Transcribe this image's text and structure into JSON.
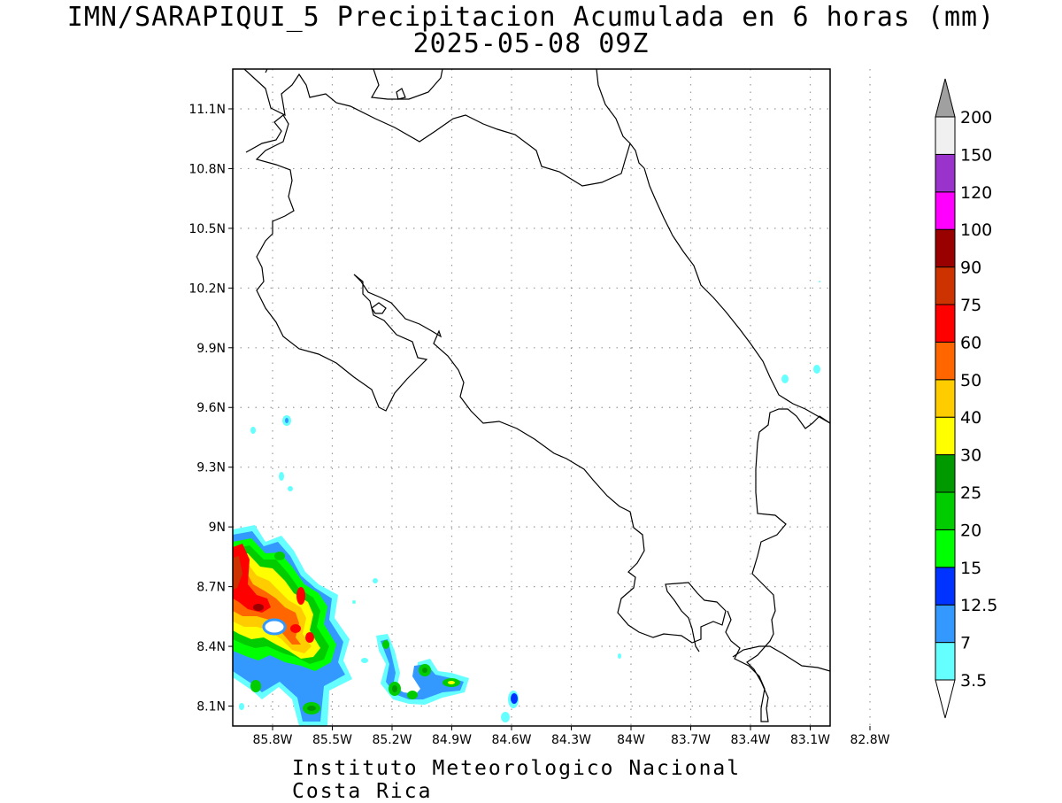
{
  "title": {
    "line1": "IMN/SARAPIQUI_5 Precipitacion Acumulada en 6 horas (mm)",
    "line2": "2025-05-08 09Z"
  },
  "footer": "Instituto Meteorologico Nacional Costa Rica",
  "map": {
    "lon_range": [
      -86.0,
      -83.0
    ],
    "lat_range": [
      8.0,
      11.3
    ],
    "grid": true,
    "lat_ticks": [
      {
        "v": 11.1,
        "label": "11.1N"
      },
      {
        "v": 10.8,
        "label": "10.8N"
      },
      {
        "v": 10.5,
        "label": "10.5N"
      },
      {
        "v": 10.2,
        "label": "10.2N"
      },
      {
        "v": 9.9,
        "label": "9.9N"
      },
      {
        "v": 9.6,
        "label": "9.6N"
      },
      {
        "v": 9.3,
        "label": "9.3N"
      },
      {
        "v": 9.0,
        "label": "9N"
      },
      {
        "v": 8.7,
        "label": "8.7N"
      },
      {
        "v": 8.4,
        "label": "8.4N"
      },
      {
        "v": 8.1,
        "label": "8.1N"
      }
    ],
    "lon_ticks": [
      {
        "v": -85.8,
        "label": "85.8W"
      },
      {
        "v": -85.5,
        "label": "85.5W"
      },
      {
        "v": -85.2,
        "label": "85.2W"
      },
      {
        "v": -84.9,
        "label": "84.9W"
      },
      {
        "v": -84.6,
        "label": "84.6W"
      },
      {
        "v": -84.3,
        "label": "84.3W"
      },
      {
        "v": -84.0,
        "label": "84W"
      },
      {
        "v": -83.7,
        "label": "83.7W"
      },
      {
        "v": -83.4,
        "label": "83.4W"
      },
      {
        "v": -83.1,
        "label": "83.1W"
      },
      {
        "v": -82.8,
        "label": "82.8W"
      }
    ]
  },
  "colorbar": {
    "labels": [
      "3.5",
      "7",
      "12.5",
      "15",
      "20",
      "25",
      "30",
      "40",
      "50",
      "60",
      "75",
      "90",
      "100",
      "120",
      "150",
      "200"
    ],
    "colors": [
      "#66ffff",
      "#3399ff",
      "#0033ff",
      "#00ff00",
      "#00cc00",
      "#009900",
      "#ffff00",
      "#ffcc00",
      "#ff6600",
      "#ff0000",
      "#cc3300",
      "#990000",
      "#ff00ff",
      "#9933cc",
      "#f0f0f0"
    ],
    "overflow_color": "#a0a0a0",
    "underflow_color": "#ffffff"
  }
}
